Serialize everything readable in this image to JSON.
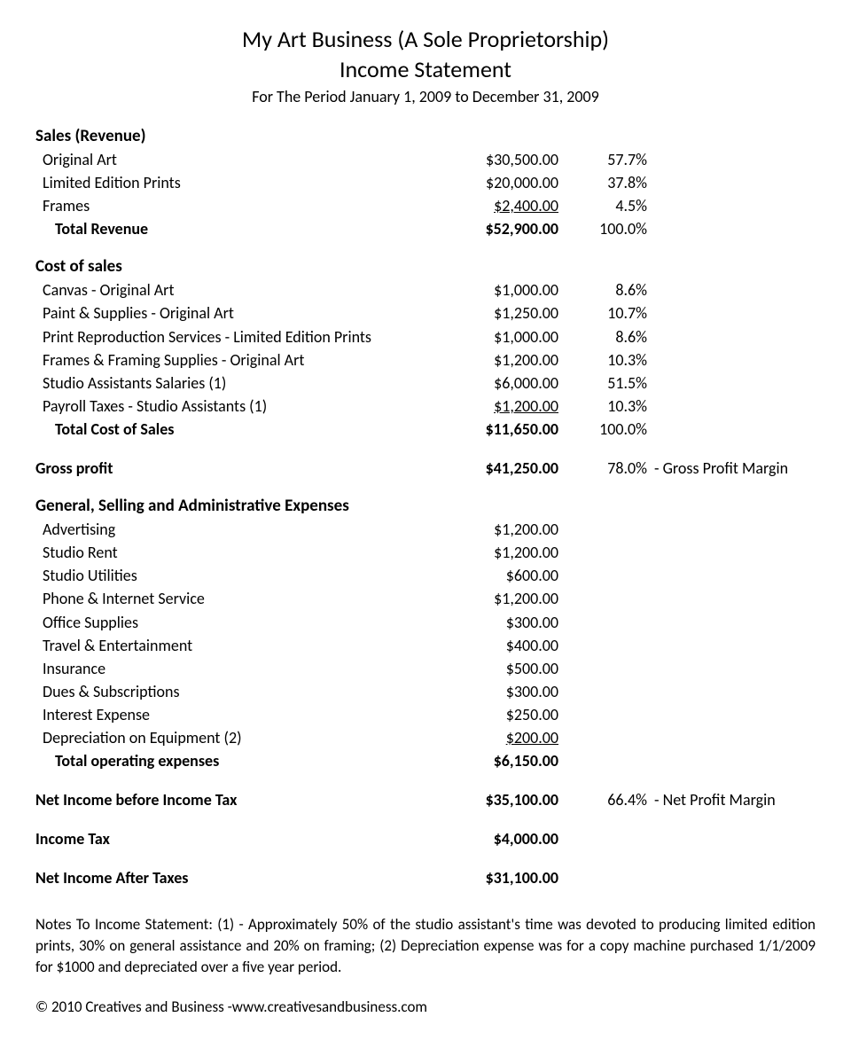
{
  "header": {
    "company": "My Art Business (A Sole Proprietorship)",
    "title": "Income Statement",
    "period": "For The Period January 1, 2009 to December 31, 2009"
  },
  "sales": {
    "heading": "Sales (Revenue)",
    "items": [
      {
        "label": "Original Art",
        "amount": "$30,500.00",
        "pct": "57.7%"
      },
      {
        "label": "Limited Edition Prints",
        "amount": "$20,000.00",
        "pct": "37.8%"
      },
      {
        "label": "Frames",
        "amount": "$2,400.00",
        "pct": "4.5%",
        "underline": true
      }
    ],
    "total": {
      "label": "Total Revenue",
      "amount": "$52,900.00",
      "pct": "100.0%"
    }
  },
  "cost_of_sales": {
    "heading": "Cost of sales",
    "items": [
      {
        "label": "Canvas - Original Art",
        "amount": "$1,000.00",
        "pct": "8.6%"
      },
      {
        "label": "Paint & Supplies - Original Art",
        "amount": "$1,250.00",
        "pct": "10.7%"
      },
      {
        "label": "Print Reproduction Services - Limited Edition Prints",
        "amount": "$1,000.00",
        "pct": "8.6%"
      },
      {
        "label": "Frames & Framing Supplies - Original Art",
        "amount": "$1,200.00",
        "pct": "10.3%"
      },
      {
        "label": "Studio Assistants Salaries (1)",
        "amount": "$6,000.00",
        "pct": "51.5%"
      },
      {
        "label": "Payroll Taxes - Studio Assistants (1)",
        "amount": "$1,200.00",
        "pct": "10.3%",
        "underline": true
      }
    ],
    "total": {
      "label": "Total Cost of Sales",
      "amount": "$11,650.00",
      "pct": "100.0%"
    }
  },
  "gross_profit": {
    "label": "Gross profit",
    "amount": "$41,250.00",
    "pct": "78.0%",
    "note": " - Gross Profit Margin"
  },
  "expenses": {
    "heading": "General, Selling and Administrative Expenses",
    "items": [
      {
        "label": "Advertising",
        "amount": "$1,200.00"
      },
      {
        "label": "Studio Rent",
        "amount": "$1,200.00"
      },
      {
        "label": "Studio Utilities",
        "amount": "$600.00"
      },
      {
        "label": "Phone & Internet Service",
        "amount": "$1,200.00"
      },
      {
        "label": "Office Supplies",
        "amount": "$300.00"
      },
      {
        "label": "Travel & Entertainment",
        "amount": "$400.00"
      },
      {
        "label": "Insurance",
        "amount": "$500.00"
      },
      {
        "label": "Dues & Subscriptions",
        "amount": "$300.00"
      },
      {
        "label": "Interest Expense",
        "amount": "$250.00"
      },
      {
        "label": "Depreciation on Equipment (2)",
        "amount": "$200.00",
        "underline": true
      }
    ],
    "total": {
      "label": "Total operating expenses",
      "amount": "$6,150.00"
    }
  },
  "net_before_tax": {
    "label": "Net Income before Income Tax",
    "amount": "$35,100.00",
    "pct": "66.4%",
    "note": " - Net Profit Margin"
  },
  "income_tax": {
    "label": "Income Tax",
    "amount": "$4,000.00"
  },
  "net_after_tax": {
    "label": "Net Income After Taxes",
    "amount": "$31,100.00"
  },
  "notes": "Notes To Income Statement: (1) - Approximately 50% of the studio assistant's time was devoted to producing limited edition prints, 30% on general assistance and 20% on framing; (2) Depreciation expense was for a copy machine purchased 1/1/2009 for $1000 and depreciated over a five year period.",
  "copyright": "© 2010 Creatives and Business -www.creativesandbusiness.com"
}
